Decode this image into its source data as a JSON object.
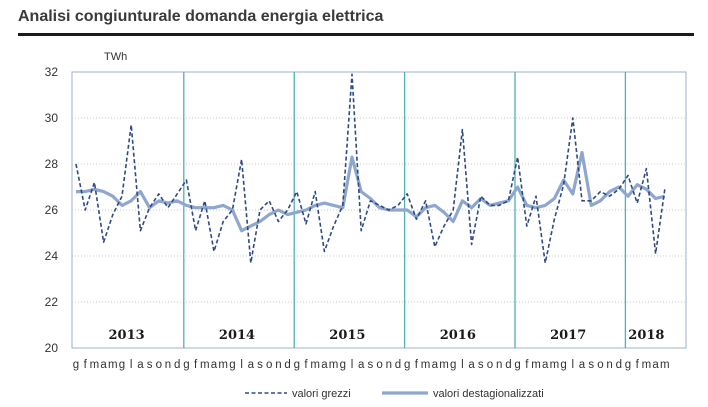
{
  "page": {
    "title": "Analisi congiunturale domanda energia elettrica"
  },
  "chart_data": {
    "type": "line",
    "ylabel": "TWh",
    "ylim": [
      20,
      32
    ],
    "yticks": [
      20,
      22,
      24,
      26,
      28,
      30,
      32
    ],
    "grid": true,
    "legend_position": "bottom",
    "years": [
      "2013",
      "2014",
      "2015",
      "2016",
      "2017",
      "2018"
    ],
    "x_tick_labels": [
      "g",
      "f",
      "m",
      "a",
      "m",
      "g",
      "l",
      "a",
      "s",
      "o",
      "n",
      "d",
      "g",
      "f",
      "m",
      "a",
      "m",
      "g",
      "l",
      "a",
      "s",
      "o",
      "n",
      "d",
      "g",
      "f",
      "m",
      "a",
      "m",
      "g",
      "l",
      "a",
      "s",
      "o",
      "n",
      "d",
      "g",
      "f",
      "m",
      "a",
      "m",
      "g",
      "l",
      "a",
      "s",
      "o",
      "n",
      "d",
      "g",
      "f",
      "m",
      "a",
      "m",
      "g",
      "l",
      "a",
      "s",
      "o",
      "n",
      "d",
      "g",
      "f",
      "m",
      "a",
      "m"
    ],
    "series": [
      {
        "name": "valori grezzi",
        "style": "dashed",
        "color": "#2e4a86",
        "values": [
          28.0,
          26.0,
          27.2,
          24.6,
          25.8,
          26.6,
          29.7,
          25.1,
          26.1,
          26.7,
          26.1,
          26.7,
          27.3,
          25.1,
          26.4,
          24.2,
          25.5,
          26.0,
          28.2,
          23.7,
          26.0,
          26.4,
          25.5,
          26.0,
          26.8,
          25.4,
          26.8,
          24.2,
          25.3,
          26.2,
          31.9,
          25.1,
          26.4,
          26.2,
          26.0,
          26.2,
          26.7,
          25.6,
          26.4,
          24.4,
          25.3,
          26.0,
          29.5,
          24.5,
          26.6,
          26.2,
          26.2,
          26.4,
          28.3,
          25.3,
          26.6,
          23.7,
          25.6,
          27.1,
          30.0,
          26.4,
          26.4,
          26.8,
          26.6,
          26.9,
          27.5,
          26.3,
          27.8,
          24.1,
          26.9
        ]
      },
      {
        "name": "valori destagionalizzati",
        "style": "solid",
        "color": "#8fa7cf",
        "values": [
          26.8,
          26.8,
          26.9,
          26.8,
          26.6,
          26.2,
          26.4,
          26.8,
          26.1,
          26.4,
          26.3,
          26.4,
          26.2,
          26.1,
          26.1,
          26.1,
          26.2,
          26.0,
          25.1,
          25.3,
          25.5,
          25.8,
          26.0,
          25.8,
          25.9,
          26.0,
          26.2,
          26.3,
          26.2,
          26.1,
          28.3,
          26.8,
          26.5,
          26.1,
          26.0,
          26.0,
          26.0,
          25.7,
          26.1,
          26.2,
          25.9,
          25.5,
          26.4,
          26.1,
          26.5,
          26.2,
          26.3,
          26.4,
          27.0,
          26.2,
          26.1,
          26.2,
          26.5,
          27.3,
          26.7,
          28.5,
          26.2,
          26.4,
          26.8,
          27.0,
          26.6,
          27.1,
          26.9,
          26.5,
          26.6
        ]
      }
    ]
  }
}
